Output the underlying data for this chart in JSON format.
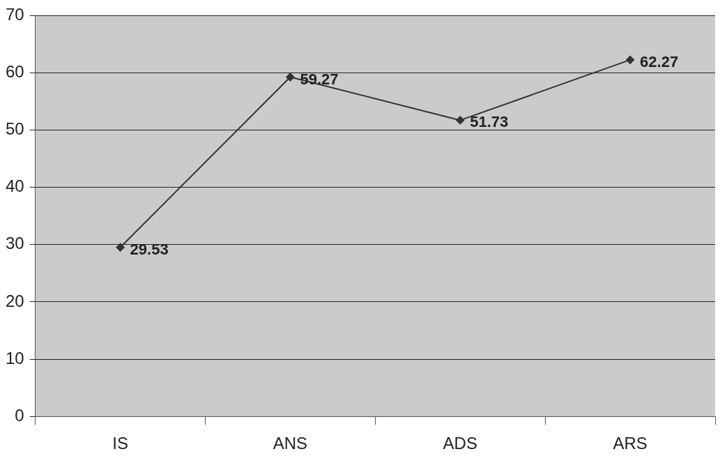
{
  "chart_data": {
    "type": "line",
    "categories": [
      "IS",
      "ANS",
      "ADS",
      "ARS"
    ],
    "series": [
      {
        "color": "#333333",
        "values": [
          29.53,
          59.27,
          51.73,
          62.27
        ]
      }
    ],
    "ylim": [
      0,
      70
    ],
    "yticks": [
      0,
      10,
      20,
      30,
      40,
      50,
      60,
      70
    ],
    "grid": "y",
    "marker": "diamond",
    "line_style": "solid",
    "data_labels": true,
    "legend": false
  }
}
